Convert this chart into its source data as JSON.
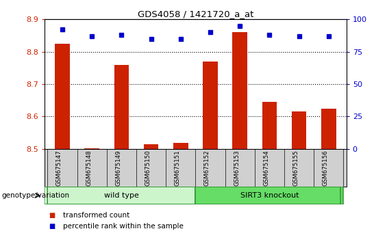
{
  "title": "GDS4058 / 1421720_a_at",
  "samples": [
    "GSM675147",
    "GSM675148",
    "GSM675149",
    "GSM675150",
    "GSM675151",
    "GSM675152",
    "GSM675153",
    "GSM675154",
    "GSM675155",
    "GSM675156"
  ],
  "transformed_counts": [
    8.825,
    8.502,
    8.76,
    8.515,
    8.518,
    8.77,
    8.86,
    8.645,
    8.615,
    8.625
  ],
  "percentile_ranks": [
    92,
    87,
    88,
    85,
    85,
    90,
    95,
    88,
    87,
    87
  ],
  "ylim_left": [
    8.5,
    8.9
  ],
  "ylim_right": [
    0,
    100
  ],
  "yticks_left": [
    8.5,
    8.6,
    8.7,
    8.8,
    8.9
  ],
  "yticks_right": [
    0,
    25,
    50,
    75,
    100
  ],
  "groups": [
    {
      "label": "wild type",
      "indices": [
        0,
        1,
        2,
        3,
        4
      ],
      "color": "#ccf5cc"
    },
    {
      "label": "SIRT3 knockout",
      "indices": [
        5,
        6,
        7,
        8,
        9
      ],
      "color": "#66dd66"
    }
  ],
  "group_label_prefix": "genotype/variation",
  "bar_color": "#cc2200",
  "percentile_color": "#0000cc",
  "bar_width": 0.5,
  "legend_items": [
    {
      "label": "transformed count",
      "color": "#cc2200"
    },
    {
      "label": "percentile rank within the sample",
      "color": "#0000cc"
    }
  ],
  "bg_color": "#ffffff",
  "tick_label_area_color": "#d0d0d0"
}
